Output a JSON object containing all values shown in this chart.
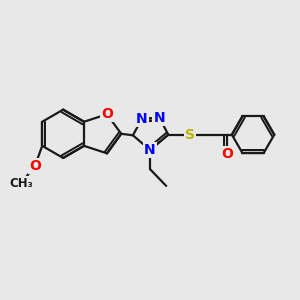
{
  "background_color": "#e8e8e8",
  "bond_color": "#1a1a1a",
  "bond_width": 1.6,
  "atom_colors": {
    "N": "#0000ff",
    "O": "#ff0000",
    "S": "#b8b800",
    "C": "#1a1a1a"
  },
  "font_size": 10,
  "font_size_small": 8.5
}
